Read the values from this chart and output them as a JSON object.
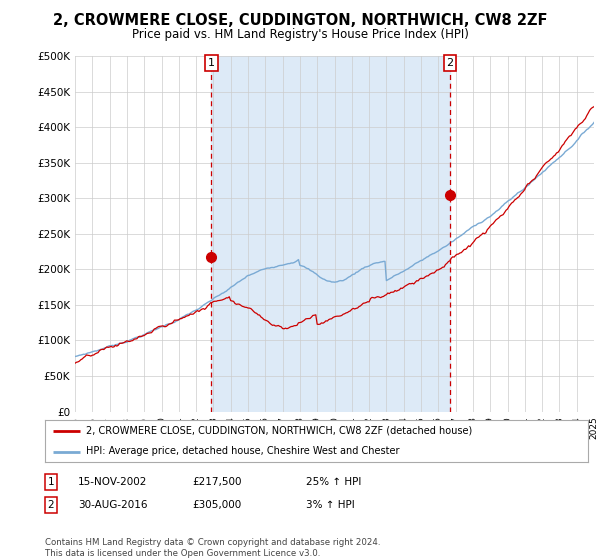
{
  "title": "2, CROWMERE CLOSE, CUDDINGTON, NORTHWICH, CW8 2ZF",
  "subtitle": "Price paid vs. HM Land Registry's House Price Index (HPI)",
  "ylim": [
    0,
    500000
  ],
  "yticks": [
    0,
    50000,
    100000,
    150000,
    200000,
    250000,
    300000,
    350000,
    400000,
    450000,
    500000
  ],
  "x_start_year": 1995,
  "x_end_year": 2025,
  "hpi_color": "#7aaad4",
  "hpi_fill_color": "#ddeaf7",
  "price_color": "#cc0000",
  "marker1_date": 2002.88,
  "marker1_value": 217500,
  "marker2_date": 2016.67,
  "marker2_value": 305000,
  "legend_entries": [
    {
      "label": "2, CROWMERE CLOSE, CUDDINGTON, NORTHWICH, CW8 2ZF (detached house)",
      "color": "#cc0000"
    },
    {
      "label": "HPI: Average price, detached house, Cheshire West and Chester",
      "color": "#7aaad4"
    }
  ],
  "table_rows": [
    {
      "num": "1",
      "date": "15-NOV-2002",
      "price": "£217,500",
      "change": "25% ↑ HPI"
    },
    {
      "num": "2",
      "date": "30-AUG-2016",
      "price": "£305,000",
      "change": "3% ↑ HPI"
    }
  ],
  "footer": "Contains HM Land Registry data © Crown copyright and database right 2024.\nThis data is licensed under the Open Government Licence v3.0.",
  "background_color": "#ffffff",
  "grid_color": "#cccccc",
  "title_fontsize": 10.5,
  "subtitle_fontsize": 8.5
}
